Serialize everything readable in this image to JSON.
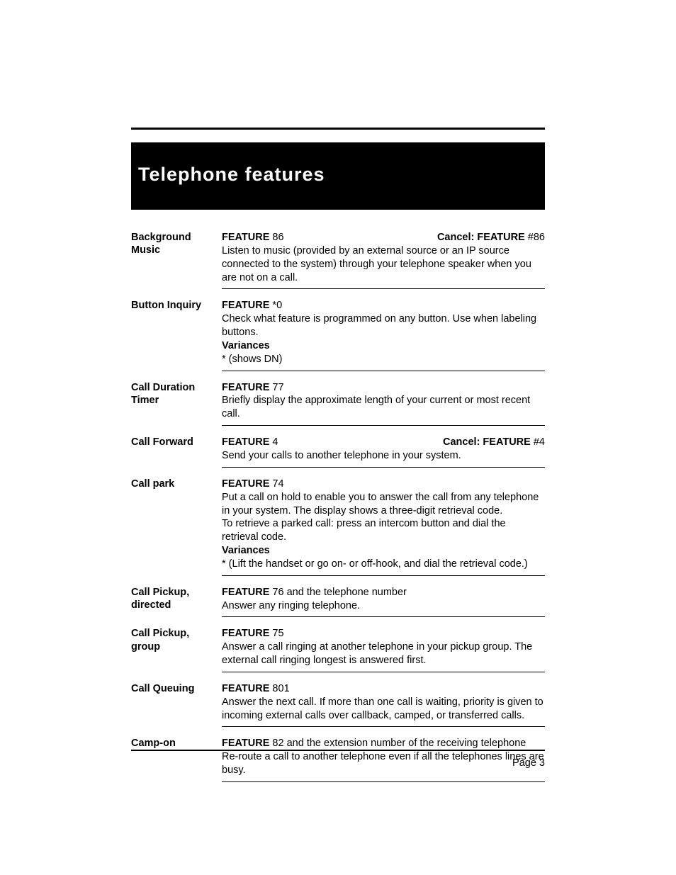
{
  "title": "Telephone  features",
  "page_label": "Page 3",
  "features": [
    {
      "name": "Background Music",
      "code_label": "FEATURE",
      "code": " 86",
      "cancel_label": "Cancel: FEATURE",
      "cancel_code": " #86",
      "body": "Listen to music (provided by an external source or an IP source connected to the system) through your telephone speaker when you are not on a call."
    },
    {
      "name": "Button Inquiry",
      "code_label": "FEATURE",
      "code": " *0",
      "body": "Check what feature is programmed on any button. Use when labeling buttons.",
      "variances_label": "Variances",
      "variances_body": "* (shows DN)"
    },
    {
      "name": "Call Duration Timer",
      "code_label": "FEATURE",
      "code": " 77",
      "body": "Briefly display the approximate length of your current or most recent call."
    },
    {
      "name": "Call Forward",
      "code_label": "FEATURE",
      "code": " 4",
      "cancel_label": "Cancel: FEATURE",
      "cancel_code": " #4",
      "body": "Send your calls to another telephone in your system."
    },
    {
      "name": "Call park",
      "code_label": "FEATURE",
      "code": " 74",
      "body": "Put a call on hold to enable you to answer the call from any telephone in your system. The display shows a three-digit retrieval code.\nTo retrieve a parked call: press an intercom button and dial the retrieval code.",
      "variances_label": "Variances",
      "variances_body": "* (Lift the handset or go on- or off-hook, and dial the retrieval code.)"
    },
    {
      "name": "Call Pickup, directed",
      "code_label": "FEATURE",
      "code": " 76 and the telephone number",
      "body": "Answer any ringing telephone."
    },
    {
      "name": "Call Pickup, group",
      "code_label": "FEATURE",
      "code": " 75",
      "body": "Answer a call ringing at another telephone in your pickup group. The external call ringing longest is answered first."
    },
    {
      "name": "Call Queuing",
      "code_label": "FEATURE",
      "code": " 801",
      "body": "Answer the next call. If more than one call is waiting, priority is given to incoming external calls over callback, camped, or transferred calls."
    },
    {
      "name": "Camp-on",
      "code_label": "FEATURE",
      "code": " 82 and the extension number of the receiving telephone",
      "body": "Re-route a call to another telephone even if all the telephones lines are busy."
    }
  ]
}
